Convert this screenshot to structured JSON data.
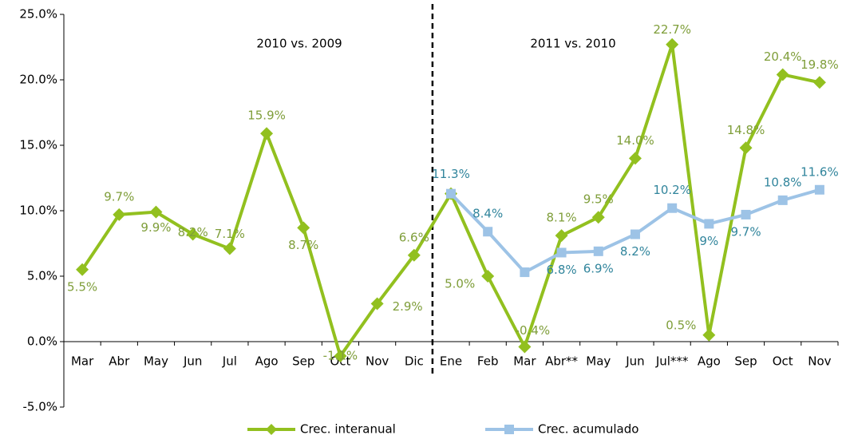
{
  "chart_data": {
    "type": "line",
    "categories": [
      "Mar",
      "Abr",
      "May",
      "Jun",
      "Jul",
      "Ago",
      "Sep",
      "Oct",
      "Nov",
      "Dic",
      "Ene",
      "Feb",
      "Mar",
      "Abr**",
      "May",
      "Jun",
      "Jul***",
      "Ago",
      "Sep",
      "Oct",
      "Nov"
    ],
    "annotations": [
      "2010 vs. 2009",
      "2011 vs. 2010"
    ],
    "series": [
      {
        "name": "Crec. interanual",
        "color": "#92c01f",
        "label_color": "#7f9e3a",
        "values": [
          5.5,
          9.7,
          9.9,
          8.2,
          7.1,
          15.9,
          8.7,
          -1.1,
          2.9,
          6.6,
          11.3,
          5.0,
          -0.4,
          8.1,
          9.5,
          14.0,
          22.7,
          0.5,
          14.8,
          20.4,
          19.8
        ],
        "value_labels": [
          "5.5%",
          "9.7%",
          "9.9%",
          "8.2%",
          "7.1%",
          "15.9%",
          "8.7%",
          "-1.1%",
          "2.9%",
          "6.6%",
          null,
          "5.0%",
          "-0.4%",
          "8.1%",
          "9.5%",
          "14.0%",
          "22.7%",
          "0.5%",
          "14.8%",
          "20.4%",
          "19.8%"
        ]
      },
      {
        "name": "Crec. acumulado",
        "color": "#9dc3e6",
        "label_color": "#31859c",
        "values": [
          null,
          null,
          null,
          null,
          null,
          null,
          null,
          null,
          null,
          null,
          11.3,
          8.4,
          5.3,
          6.8,
          6.9,
          8.2,
          10.2,
          9,
          9.7,
          10.8,
          11.6
        ],
        "value_labels": [
          null,
          null,
          null,
          null,
          null,
          null,
          null,
          null,
          null,
          null,
          "11.3%",
          "8.4%",
          null,
          "6.8%",
          "6.9%",
          "8.2%",
          "10.2%",
          "9%",
          "9.7%",
          "10.8%",
          "11.6%"
        ]
      }
    ],
    "ylim": [
      -5,
      25
    ],
    "yticks": [
      {
        "value": -5,
        "label": "-5.0%"
      },
      {
        "value": 0,
        "label": "0.0%"
      },
      {
        "value": 5,
        "label": "5.0%"
      },
      {
        "value": 10,
        "label": "10.0%"
      },
      {
        "value": 15,
        "label": "15.0%"
      },
      {
        "value": 20,
        "label": "20.0%"
      },
      {
        "value": 25,
        "label": "25.0%"
      }
    ],
    "legend": "bottom"
  }
}
